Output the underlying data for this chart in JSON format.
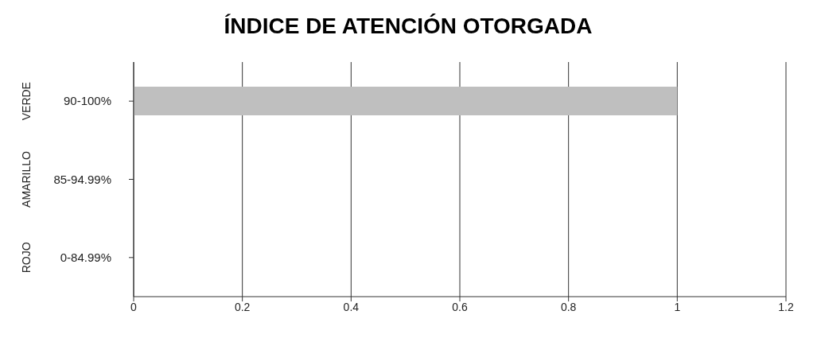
{
  "chart_data": {
    "type": "bar",
    "orientation": "horizontal",
    "title": "ÍNDICE DE ATENCIÓN OTORGADA",
    "categories": [
      "90-100%",
      "85-94.99%",
      "0-84.99%"
    ],
    "values": [
      1,
      null,
      null
    ],
    "color": "#bfbfbf",
    "xlim": [
      0,
      1.2
    ],
    "xticks": [
      0,
      0.2,
      0.4,
      0.6,
      0.8,
      1,
      1.2
    ],
    "grid": "x",
    "annotations": [
      "VERDE",
      "AMARILLO",
      "ROJO"
    ]
  }
}
